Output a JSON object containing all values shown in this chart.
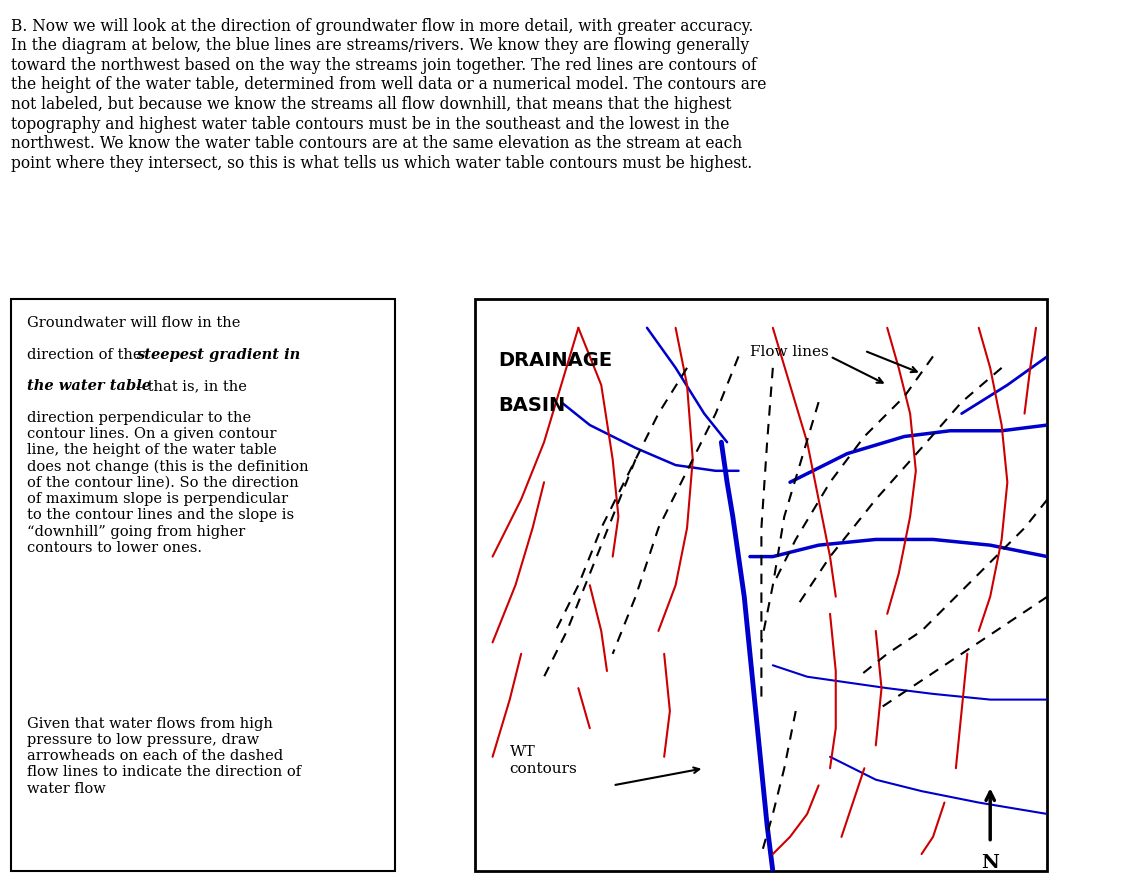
{
  "title_text": "B. Now we will look at the direction of groundwater flow in more detail, with greater accuracy.\nIn the diagram at below, the blue lines are streams/rivers. We know they are flowing generally\ntoward the northwest based on the way the streams join together. The red lines are contours of\nthe height of the water table, determined from well data or a numerical model. The contours are\nnot labeled, but because we know the streams all flow downhill, that means that the highest\ntopography and highest water table contours must be in the southeast and the lowest in the\nnorthwest. We know the water table contours are at the same elevation as the stream at each\npoint where they intersect, so this is what tells us which water table contours must be highest.",
  "left_text_plain1": "Groundwater will flow in the\ndirection of the ",
  "left_text_bold": "steepest gradient in\nthe water table",
  "left_text_plain2": " – that is, in the\ndirection perpendicular to the\ncontour lines. On a given contour\nline, the height of the water table\ndoes not change (this is the definition\nof the contour line). So the direction\nof maximum slope is perpendicular\nto the contour lines and the slope is\n“downhill” going from higher\ncontours to lower ones.",
  "left_text_plain3": "Given that water flows from high\npressure to low pressure, draw\narrowheads on each of the dashed\nflow lines to indicate the direction of\nwater flow",
  "map_title1": "DRAINAGE",
  "map_title2": "BASIN",
  "flow_lines_label": "Flow lines",
  "wt_contours_label": "WT\ncontours",
  "north_label": "N",
  "background": "#ffffff",
  "blue_color": "#0000cc",
  "red_color": "#cc0000",
  "black_color": "#000000"
}
